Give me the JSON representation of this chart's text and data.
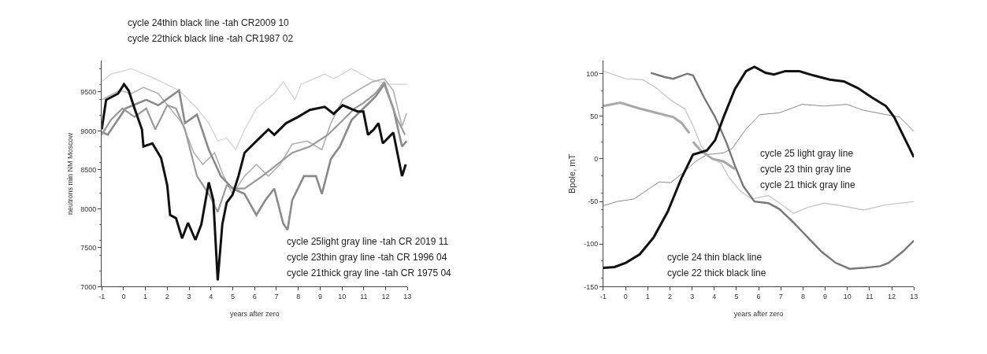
{
  "chart_data": [
    {
      "type": "line",
      "xlabel": "years after zero",
      "ylabel": "neutrons min NM Moscow",
      "xlim": [
        -1,
        13
      ],
      "xticks": [
        -1,
        0,
        1,
        2,
        3,
        4,
        5,
        6,
        7,
        8,
        9,
        10,
        11,
        12,
        13
      ],
      "ylim": [
        7000,
        9900
      ],
      "yticks": [
        7000,
        7500,
        8000,
        8500,
        9000,
        9500
      ],
      "marker": "none",
      "line_style": "solid",
      "annotations": [
        "cycle 24thin black line -tah CR2009 10",
        "cycle 22thick black line -tah CR1987 02",
        "cycle 25light gray line -tah CR 2019 11",
        "cycle 23thin gray line -tah CR 1996 04",
        "cycle 21thick gray line -tah CR 1975 04"
      ],
      "series": [
        {
          "color": "#d0d0d0",
          "x": [
            -1,
            -0.59,
            0.36,
            1.45,
            2.54,
            3.36,
            3.9,
            4.31,
            4.72,
            5.13,
            5.54,
            6.08,
            6.9,
            7.31,
            7.85,
            8.12,
            9.21,
            9.62,
            10.44,
            11.26,
            12.07,
            13
          ],
          "values": [
            9630,
            9730,
            9800,
            9670,
            9520,
            9290,
            9100,
            8870,
            8910,
            8760,
            9020,
            9290,
            9480,
            9630,
            9400,
            9600,
            9730,
            9670,
            9800,
            9670,
            9600,
            9600
          ]
        },
        {
          "color": "#b0b0b0",
          "x": [
            -1,
            -0.18,
            0.36,
            0.91,
            1.59,
            2.13,
            2.68,
            3.22,
            3.63,
            4.17,
            4.58,
            4.99,
            5.54,
            6.08,
            6.63,
            7.17,
            7.72,
            8.4,
            9.08,
            9.49,
            10.03,
            10.71,
            11.39,
            11.94,
            12.35,
            12.75,
            12.96
          ],
          "values": [
            9400,
            9520,
            9480,
            9560,
            9480,
            9290,
            9100,
            8720,
            8570,
            8720,
            8420,
            8190,
            8420,
            8570,
            8420,
            8570,
            8830,
            8870,
            8760,
            9100,
            9400,
            9520,
            9630,
            9670,
            9520,
            9060,
            9230
          ]
        },
        {
          "color": "#8a8a8a",
          "x": [
            -1,
            -0.73,
            0.09,
            1.04,
            1.59,
            2.54,
            2.81,
            3.36,
            3.9,
            4.45,
            4.99,
            5.54,
            6.08,
            6.49,
            6.9,
            7.31,
            7.51,
            7.72,
            8.26,
            8.81,
            9.08,
            9.49,
            9.9,
            10.44,
            10.98,
            11.53,
            11.94,
            12.35,
            12.75,
            12.96
          ],
          "values": [
            8990,
            8950,
            9290,
            9400,
            9330,
            9520,
            9100,
            9210,
            8760,
            8420,
            8260,
            8190,
            7920,
            8110,
            8260,
            7810,
            7730,
            8110,
            8420,
            8420,
            8190,
            8640,
            8800,
            9140,
            9290,
            9440,
            9600,
            9290,
            8800,
            8870
          ]
        },
        {
          "color": "#9a9a9a",
          "x": [
            -1,
            -0.59,
            -0.05,
            0.5,
            1.04,
            1.45,
            2.0,
            2.4,
            2.81,
            3.36,
            3.9,
            4.31,
            4.72,
            5.13,
            5.54,
            6.35,
            7.03,
            7.72,
            8.53,
            9.35,
            9.9,
            10.58,
            10.98,
            11.53,
            11.94,
            12.48,
            12.89
          ],
          "values": [
            8950,
            9140,
            9290,
            9180,
            9290,
            9020,
            9330,
            9290,
            9020,
            8420,
            8190,
            7960,
            8300,
            8260,
            8260,
            8420,
            8570,
            8720,
            8800,
            8950,
            9100,
            9290,
            9360,
            9480,
            9630,
            9180,
            8950
          ]
        },
        {
          "color": "#111111",
          "x": [
            -1,
            -0.8,
            -0.25,
            0.02,
            0.23,
            0.5,
            0.84,
            0.91,
            1.32,
            1.72,
            2.0,
            2.13,
            2.4,
            2.68,
            2.95,
            3.29,
            3.56,
            3.9,
            4.11,
            4.31,
            4.52,
            4.72,
            4.99,
            5.26,
            5.54,
            6.08,
            6.63,
            6.9,
            7.44,
            7.99,
            8.53,
            9.21,
            9.62,
            10.03,
            10.71,
            10.98,
            11.19,
            11.46,
            11.67,
            11.87,
            12.35,
            12.75,
            12.92
          ],
          "values": [
            9020,
            9400,
            9480,
            9600,
            9520,
            9290,
            9020,
            8800,
            8840,
            8650,
            8300,
            7920,
            7880,
            7620,
            7820,
            7600,
            7800,
            8340,
            8110,
            7080,
            7800,
            8080,
            8180,
            8420,
            8720,
            8870,
            9020,
            8950,
            9100,
            9180,
            9270,
            9310,
            9220,
            9330,
            9250,
            9250,
            8950,
            9020,
            9100,
            8840,
            8980,
            8420,
            8570
          ]
        }
      ]
    },
    {
      "type": "line",
      "xlabel": "years after zero",
      "ylabel": "Bpole, mT",
      "xlim": [
        -1,
        13
      ],
      "xticks": [
        -1,
        0,
        1,
        2,
        3,
        4,
        5,
        6,
        7,
        8,
        9,
        10,
        11,
        12,
        13
      ],
      "ylim": [
        -150,
        115
      ],
      "yticks": [
        -150,
        -100,
        -50,
        0,
        50,
        100
      ],
      "marker": "none",
      "line_style": "solid",
      "annotations": [
        "cycle 25 light gray line",
        "cycle 23 thin gray line",
        "cycle 21 thick gray line",
        "cycle 24 thin black line",
        "cycle 22 thick black line"
      ],
      "series": [
        {
          "color": "#c8c8c8",
          "x": [
            -1,
            0.01,
            0.77,
            1.4,
            2.03,
            2.66,
            3.04,
            3.41,
            3.79,
            4.3,
            4.67,
            5.18,
            5.68,
            6.44,
            6.94,
            7.58,
            8.21,
            8.96,
            9.72,
            10.73,
            11.74,
            13
          ],
          "values": [
            103,
            94,
            93,
            83,
            69,
            59,
            39,
            15,
            2,
            -5,
            -22,
            -38,
            -47,
            -43,
            -52,
            -64,
            -57,
            -52,
            -55,
            -60,
            -54,
            -50
          ]
        },
        {
          "color": "#8a8a8a",
          "x": [
            -1,
            -0.37,
            0.39,
            0.89,
            1.52,
            2.03,
            2.66,
            3.16,
            3.67,
            4.42,
            4.8,
            5.43,
            6.06,
            6.94,
            7.95,
            8.96,
            9.97,
            10.73,
            11.74,
            12.37,
            13
          ],
          "values": [
            -55,
            -50,
            -47,
            -38,
            -27,
            -28,
            -15,
            -3,
            5,
            7,
            12,
            35,
            52,
            54,
            64,
            62,
            64,
            57,
            52,
            49,
            32
          ]
        },
        {
          "color": "#a8a8a8",
          "x": [
            -1,
            -0.24,
            0.64,
            1.4,
            2.15,
            2.53,
            2.88,
            2.95,
            3.04,
            3.41,
            3.92,
            4.42,
            4.93
          ],
          "values": [
            62,
            66,
            59,
            54,
            49,
            42,
            30,
            null,
            20,
            9,
            0,
            -3,
            -12
          ]
        },
        {
          "color": "#777777",
          "x": [
            1.14,
            1.77,
            2.15,
            2.78,
            3.04,
            3.54,
            4.04,
            4.55,
            4.93,
            5.31,
            5.81,
            6.44,
            6.94,
            7.58,
            8.21,
            8.84,
            9.47,
            10.1,
            10.73,
            11.48,
            11.86,
            12.49,
            13
          ],
          "values": [
            101,
            96,
            94,
            100,
            98,
            72,
            49,
            19,
            -8,
            -32,
            -50,
            -52,
            -59,
            -75,
            -92,
            -109,
            -122,
            -129,
            -128,
            -126,
            -122,
            -109,
            -96
          ]
        },
        {
          "color": "#111111",
          "x": [
            -1,
            -0.5,
            0.01,
            0.64,
            1.27,
            1.9,
            2.53,
            3.04,
            3.67,
            4.04,
            4.42,
            4.93,
            5.43,
            5.81,
            6.31,
            6.69,
            7.2,
            7.83,
            8.46,
            9.21,
            9.84,
            10.48,
            11.11,
            11.74,
            12.11,
            12.62,
            13
          ],
          "values": [
            -128,
            -127,
            -122,
            -112,
            -92,
            -62,
            -22,
            5,
            10,
            22,
            49,
            82,
            103,
            108,
            101,
            99,
            103,
            103,
            98,
            93,
            91,
            83,
            72,
            62,
            49,
            22,
            2
          ]
        }
      ]
    }
  ]
}
